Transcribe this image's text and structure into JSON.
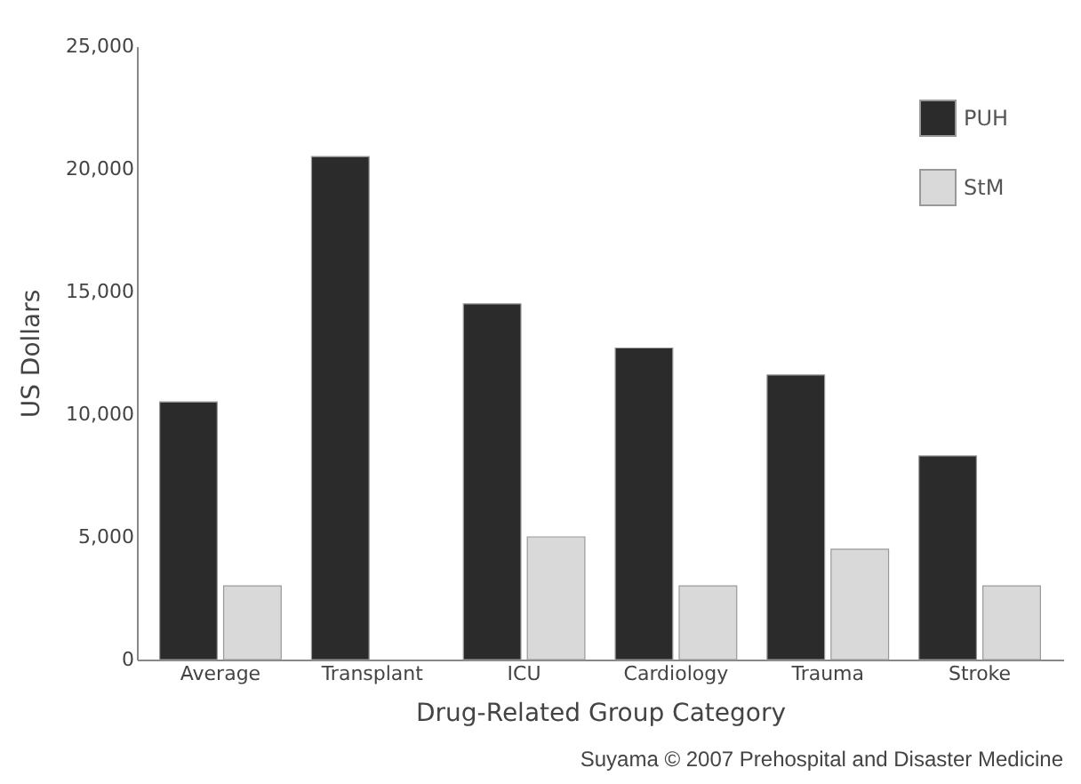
{
  "chart_data": {
    "type": "bar",
    "xlabel": "Drug-Related Group Category",
    "ylabel": "US Dollars",
    "categories": [
      "Average",
      "Transplant",
      "ICU",
      "Cardiology",
      "Trauma",
      "Stroke"
    ],
    "series": [
      {
        "name": "PUH",
        "color": "#2b2b2b",
        "values": [
          10500,
          20500,
          14500,
          12700,
          11600,
          8300
        ]
      },
      {
        "name": "StM",
        "color": "#d9d9d9",
        "values": [
          3000,
          null,
          5000,
          3000,
          4500,
          3000
        ]
      }
    ],
    "ylim": [
      0,
      25000
    ],
    "yticks": [
      {
        "value": 0,
        "label": "0"
      },
      {
        "value": 5000,
        "label": "5,000"
      },
      {
        "value": 10000,
        "label": "10,000"
      },
      {
        "value": 15000,
        "label": "15,000"
      },
      {
        "value": 20000,
        "label": "20,000"
      },
      {
        "value": 25000,
        "label": "25,000"
      }
    ],
    "grid": false,
    "legend": "top right",
    "annotations": [
      "Suyama © 2007 Prehospital and Disaster Medicine"
    ]
  }
}
